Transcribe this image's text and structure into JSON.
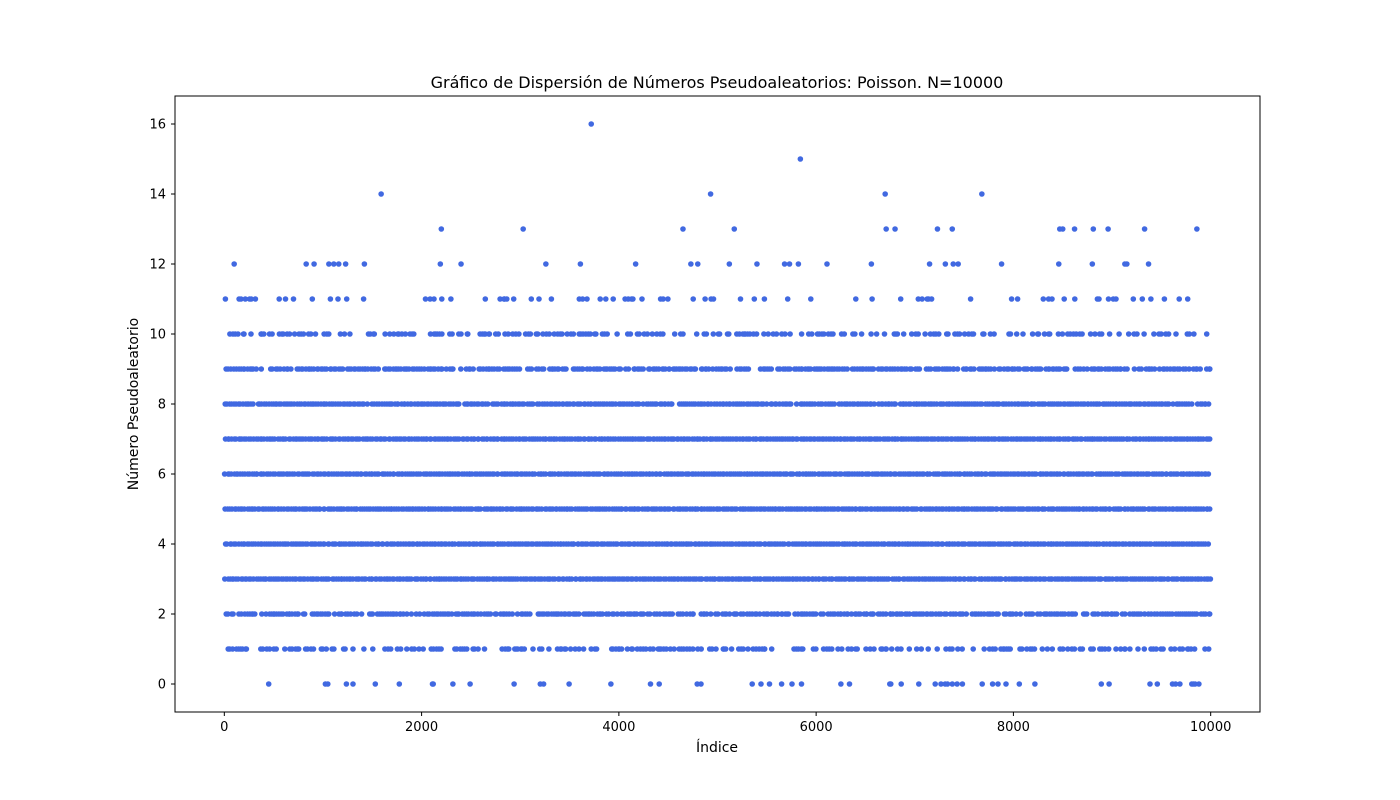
{
  "chart_data": {
    "type": "scatter",
    "title": "Gráfico de Dispersión de Números Pseudoaleatorios: Poisson. N=10000",
    "xlabel": "Índice",
    "ylabel": "Número Pseudoaleatorio",
    "xlim": [
      -500,
      10500
    ],
    "ylim": [
      -0.8,
      16.8
    ],
    "x_ticks": [
      0,
      2000,
      4000,
      6000,
      8000,
      10000
    ],
    "y_ticks": [
      0,
      2,
      4,
      6,
      8,
      10,
      12,
      14,
      16
    ],
    "grid": false,
    "legend": "none",
    "marker_color": "#4169e1",
    "x_range": [
      0,
      9999
    ],
    "series": [
      {
        "points": [
          [
            3720,
            16
          ],
          [
            5840,
            15
          ],
          [
            1590,
            14
          ],
          [
            4930,
            14
          ],
          [
            6700,
            14
          ],
          [
            7680,
            14
          ],
          [
            2200,
            13
          ],
          [
            3030,
            13
          ],
          [
            4650,
            13
          ],
          [
            5170,
            13
          ],
          [
            6710,
            13
          ],
          [
            6800,
            13
          ],
          [
            7230,
            13
          ],
          [
            7380,
            13
          ],
          [
            8470,
            13
          ],
          [
            8500,
            13
          ],
          [
            8620,
            13
          ],
          [
            8810,
            13
          ],
          [
            8960,
            13
          ],
          [
            9330,
            13
          ],
          [
            9860,
            13
          ],
          [
            100,
            12
          ],
          [
            830,
            12
          ],
          [
            910,
            12
          ],
          [
            1060,
            12
          ],
          [
            1110,
            12
          ],
          [
            1160,
            12
          ],
          [
            1230,
            12
          ],
          [
            1420,
            12
          ],
          [
            2190,
            12
          ],
          [
            2400,
            12
          ],
          [
            3260,
            12
          ],
          [
            3610,
            12
          ],
          [
            4170,
            12
          ],
          [
            4730,
            12
          ],
          [
            4800,
            12
          ],
          [
            5120,
            12
          ],
          [
            5400,
            12
          ],
          [
            5680,
            12
          ],
          [
            5730,
            12
          ],
          [
            5820,
            12
          ],
          [
            6110,
            12
          ],
          [
            6560,
            12
          ],
          [
            7150,
            12
          ],
          [
            7310,
            12
          ],
          [
            7390,
            12
          ],
          [
            7440,
            12
          ],
          [
            7880,
            12
          ],
          [
            8460,
            12
          ],
          [
            8800,
            12
          ],
          [
            9130,
            12
          ],
          [
            9150,
            12
          ],
          [
            9370,
            12
          ]
        ],
        "dense_values": [
          0,
          1,
          2,
          3,
          4,
          5,
          6,
          7,
          8,
          9,
          10,
          11
        ],
        "dense_density": [
          0.12,
          0.5,
          0.8,
          1.0,
          1.0,
          1.0,
          1.0,
          1.0,
          0.95,
          0.82,
          0.45,
          0.15
        ]
      }
    ]
  }
}
